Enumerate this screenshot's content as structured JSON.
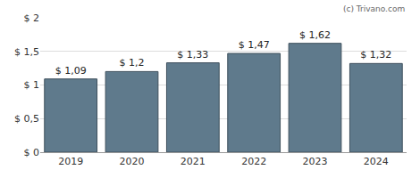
{
  "chart_data": {
    "type": "bar",
    "categories": [
      "2019",
      "2020",
      "2021",
      "2022",
      "2023",
      "2024"
    ],
    "values": [
      1.09,
      1.2,
      1.33,
      1.47,
      1.62,
      1.32
    ],
    "value_labels": [
      "$ 1,09",
      "$ 1,2",
      "$ 1,33",
      "$ 1,47",
      "$ 1,62",
      "$ 1,32"
    ],
    "data_labels": true,
    "color": "#5f7a8c",
    "ylim": [
      0,
      2
    ],
    "yticks": [
      {
        "value": 0,
        "label": "$ 0"
      },
      {
        "value": 0.5,
        "label": "$ 0,5"
      },
      {
        "value": 1,
        "label": "$ 1"
      },
      {
        "value": 1.5,
        "label": "$ 1,5"
      },
      {
        "value": 2,
        "label": "$ 2"
      }
    ],
    "grid": true,
    "annotations": [
      "(c) Trivano.com"
    ]
  }
}
